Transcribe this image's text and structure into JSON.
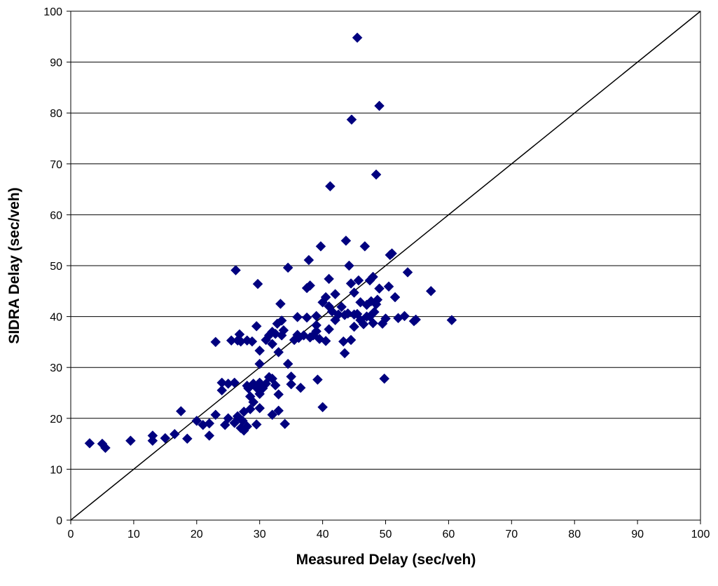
{
  "chart_data": {
    "type": "scatter",
    "title": "",
    "xlabel": "Measured Delay (sec/veh)",
    "ylabel": "SIDRA Delay (sec/veh)",
    "xlim": [
      0,
      100
    ],
    "ylim": [
      0,
      100
    ],
    "xticks": [
      0,
      10,
      20,
      30,
      40,
      50,
      60,
      70,
      80,
      90,
      100
    ],
    "yticks": [
      0,
      10,
      20,
      30,
      40,
      50,
      60,
      70,
      80,
      90,
      100
    ],
    "grid": "horizontal",
    "legend": "none",
    "reference_line": {
      "from": [
        0,
        0
      ],
      "to": [
        100,
        100
      ]
    },
    "colors": {
      "marker": "#00007f",
      "grid": "#000000",
      "line": "#000000"
    },
    "series": [
      {
        "marker": "diamond",
        "points": [
          [
            3,
            15.1
          ],
          [
            5,
            15
          ],
          [
            5.5,
            14.2
          ],
          [
            9.5,
            15.6
          ],
          [
            13,
            16.6
          ],
          [
            13,
            15.6
          ],
          [
            15,
            16.1
          ],
          [
            16.5,
            16.9
          ],
          [
            17.5,
            21.4
          ],
          [
            18.5,
            16
          ],
          [
            20,
            19.5
          ],
          [
            21,
            18.7
          ],
          [
            22,
            19
          ],
          [
            22,
            16.6
          ],
          [
            23,
            20.7
          ],
          [
            23,
            35
          ],
          [
            24,
            27
          ],
          [
            24,
            25.5
          ],
          [
            24.5,
            18.7
          ],
          [
            25,
            20
          ],
          [
            25,
            26.8
          ],
          [
            25.5,
            35.3
          ],
          [
            26,
            27
          ],
          [
            26,
            19.1
          ],
          [
            26.2,
            49.1
          ],
          [
            26.5,
            20.4
          ],
          [
            26.5,
            35.3
          ],
          [
            26.8,
            36.5
          ],
          [
            27,
            35.1
          ],
          [
            27,
            18.1
          ],
          [
            27.3,
            19.5
          ],
          [
            27.5,
            21.3
          ],
          [
            27.5,
            17.6
          ],
          [
            28,
            26.4
          ],
          [
            28,
            35.3
          ],
          [
            28,
            18.4
          ],
          [
            28.2,
            25.9
          ],
          [
            28.5,
            24.3
          ],
          [
            28.5,
            21.8
          ],
          [
            28.8,
            35.1
          ],
          [
            29,
            26.8
          ],
          [
            29,
            23.2
          ],
          [
            29.5,
            38.1
          ],
          [
            29.5,
            26
          ],
          [
            29.5,
            18.8
          ],
          [
            29.7,
            46.4
          ],
          [
            30,
            30.7
          ],
          [
            30,
            33.3
          ],
          [
            30,
            27
          ],
          [
            30,
            22
          ],
          [
            30,
            24.8
          ],
          [
            30.5,
            25.9
          ],
          [
            31,
            26.8
          ],
          [
            31,
            35.4
          ],
          [
            31.5,
            36.3
          ],
          [
            31.5,
            28.1
          ],
          [
            32,
            34.6
          ],
          [
            32,
            37
          ],
          [
            32,
            27.8
          ],
          [
            32,
            20.7
          ],
          [
            32.5,
            36.6
          ],
          [
            32.5,
            26.5
          ],
          [
            32.8,
            38.6
          ],
          [
            33,
            24.7
          ],
          [
            33,
            21.5
          ],
          [
            33,
            33
          ],
          [
            33.3,
            42.5
          ],
          [
            33.5,
            36.3
          ],
          [
            33.5,
            39.2
          ],
          [
            33.8,
            37.3
          ],
          [
            34,
            18.9
          ],
          [
            34.5,
            49.6
          ],
          [
            34.5,
            30.7
          ],
          [
            35,
            28.2
          ],
          [
            35,
            26.7
          ],
          [
            35.5,
            35.4
          ],
          [
            36,
            36.4
          ],
          [
            36,
            39.9
          ],
          [
            36.2,
            35.8
          ],
          [
            36.5,
            26
          ],
          [
            37,
            36.3
          ],
          [
            37.5,
            39.8
          ],
          [
            37.5,
            45.6
          ],
          [
            37.8,
            51.1
          ],
          [
            38,
            35.9
          ],
          [
            38,
            46.1
          ],
          [
            38.5,
            36.3
          ],
          [
            39,
            37.1
          ],
          [
            39,
            38.3
          ],
          [
            39,
            40.1
          ],
          [
            39.2,
            27.6
          ],
          [
            39.5,
            35.6
          ],
          [
            39.7,
            53.8
          ],
          [
            40,
            42.8
          ],
          [
            40,
            22.2
          ],
          [
            40.5,
            35.2
          ],
          [
            40.5,
            43.8
          ],
          [
            41,
            37.5
          ],
          [
            41,
            47.4
          ],
          [
            41,
            42
          ],
          [
            41.2,
            65.6
          ],
          [
            41.5,
            41
          ],
          [
            42,
            39.3
          ],
          [
            42,
            44.4
          ],
          [
            42.5,
            40.4
          ],
          [
            43,
            41.9
          ],
          [
            43.3,
            35.1
          ],
          [
            43.5,
            40.3
          ],
          [
            43.5,
            32.8
          ],
          [
            43.7,
            54.9
          ],
          [
            44,
            40.6
          ],
          [
            44.2,
            50
          ],
          [
            44.5,
            35.4
          ],
          [
            44.5,
            46.5
          ],
          [
            44.6,
            78.7
          ],
          [
            45,
            40.4
          ],
          [
            45,
            38
          ],
          [
            45,
            44.7
          ],
          [
            45.5,
            94.8
          ],
          [
            45.5,
            40.5
          ],
          [
            45.7,
            47.1
          ],
          [
            46,
            42.8
          ],
          [
            46,
            39.3
          ],
          [
            46.5,
            38.5
          ],
          [
            46.7,
            53.8
          ],
          [
            47,
            40
          ],
          [
            47,
            42.3
          ],
          [
            47.5,
            47.1
          ],
          [
            47.5,
            40
          ],
          [
            47.7,
            43
          ],
          [
            48,
            38.7
          ],
          [
            48,
            47.8
          ],
          [
            48.2,
            40.9
          ],
          [
            48.5,
            67.9
          ],
          [
            48.5,
            42.4
          ],
          [
            48.7,
            43.3
          ],
          [
            49,
            81.4
          ],
          [
            49,
            45.5
          ],
          [
            49.5,
            38.6
          ],
          [
            49.8,
            27.8
          ],
          [
            50,
            39.6
          ],
          [
            50.5,
            45.9
          ],
          [
            50.7,
            52.1
          ],
          [
            51,
            52.4
          ],
          [
            51.5,
            43.8
          ],
          [
            52,
            39.7
          ],
          [
            53,
            40.1
          ],
          [
            53.5,
            48.7
          ],
          [
            54.5,
            39.1
          ],
          [
            54.8,
            39.4
          ],
          [
            57.2,
            45
          ],
          [
            60.5,
            39.3
          ]
        ]
      }
    ]
  }
}
